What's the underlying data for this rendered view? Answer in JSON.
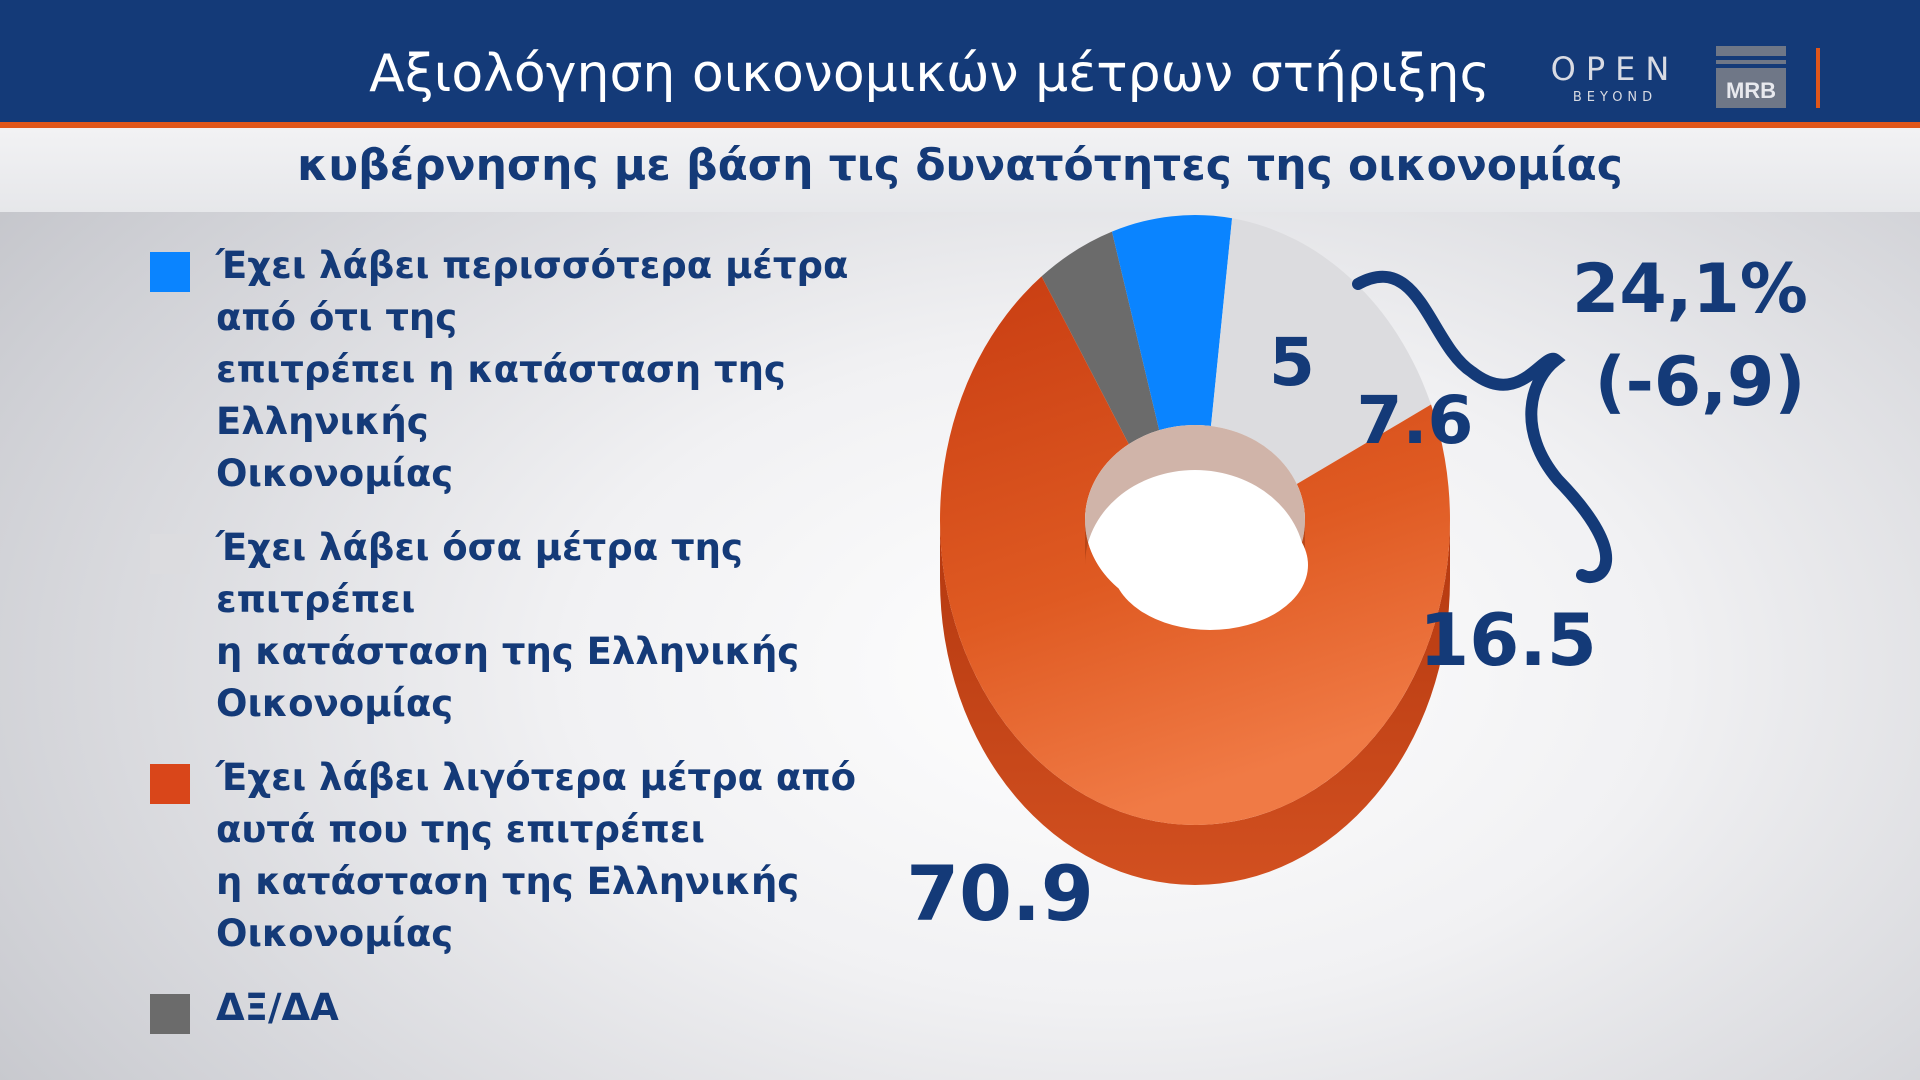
{
  "header": {
    "title": "Αξιολόγηση οικονομικών μέτρων στήριξης",
    "subtitle": "κυβέρνησης με βάση τις δυνατότητες της οικονομίας",
    "logo_open": "OPEN",
    "logo_open_sub": "BEYOND",
    "logo_mrb": "MRB"
  },
  "colors": {
    "brand_blue": "#143a78",
    "accent_orange": "#e0561a",
    "series_more": "#0a84ff",
    "series_enough": "#dcdcdf",
    "series_less": "#d9461a",
    "series_dk": "#6b6b6b"
  },
  "chart_data": {
    "type": "pie",
    "style": "3d-donut",
    "title": "Αξιολόγηση οικονομικών μέτρων στήριξης κυβέρνησης με βάση τις δυνατότητες της οικονομίας",
    "legend_position": "left",
    "categories": [
      "Έχει λάβει περισσότερα μέτρα από ότι της επιτρέπει η κατάσταση της Ελληνικής Οικονομίας",
      "Έχει λάβει όσα μέτρα της επιτρέπει η κατάσταση της Ελληνικής Οικονομίας",
      "Έχει λάβει λιγότερα μέτρα από αυτά που της επιτρέπει η κατάσταση της Ελληνικής Οικονομίας",
      "ΔΞ/ΔΑ"
    ],
    "legend_labels": [
      "Έχει λάβει περισσότερα μέτρα από ότι της\nεπιτρέπει η κατάσταση της Ελληνικής\nΟικονομίας",
      "Έχει λάβει όσα μέτρα της επιτρέπει\nη κατάσταση της Ελληνικής\nΟικονομίας",
      "Έχει λάβει λιγότερα μέτρα από\nαυτά που της επιτρέπει\nη κατάσταση της Ελληνικής\nΟικονομίας",
      "ΔΞ/ΔΑ"
    ],
    "values": [
      7.6,
      16.5,
      70.9,
      5
    ],
    "data_labels": [
      "7.6",
      "16.5",
      "70.9",
      "5"
    ],
    "annotation": {
      "value": "24,1%",
      "change": "(-6,9)"
    }
  }
}
